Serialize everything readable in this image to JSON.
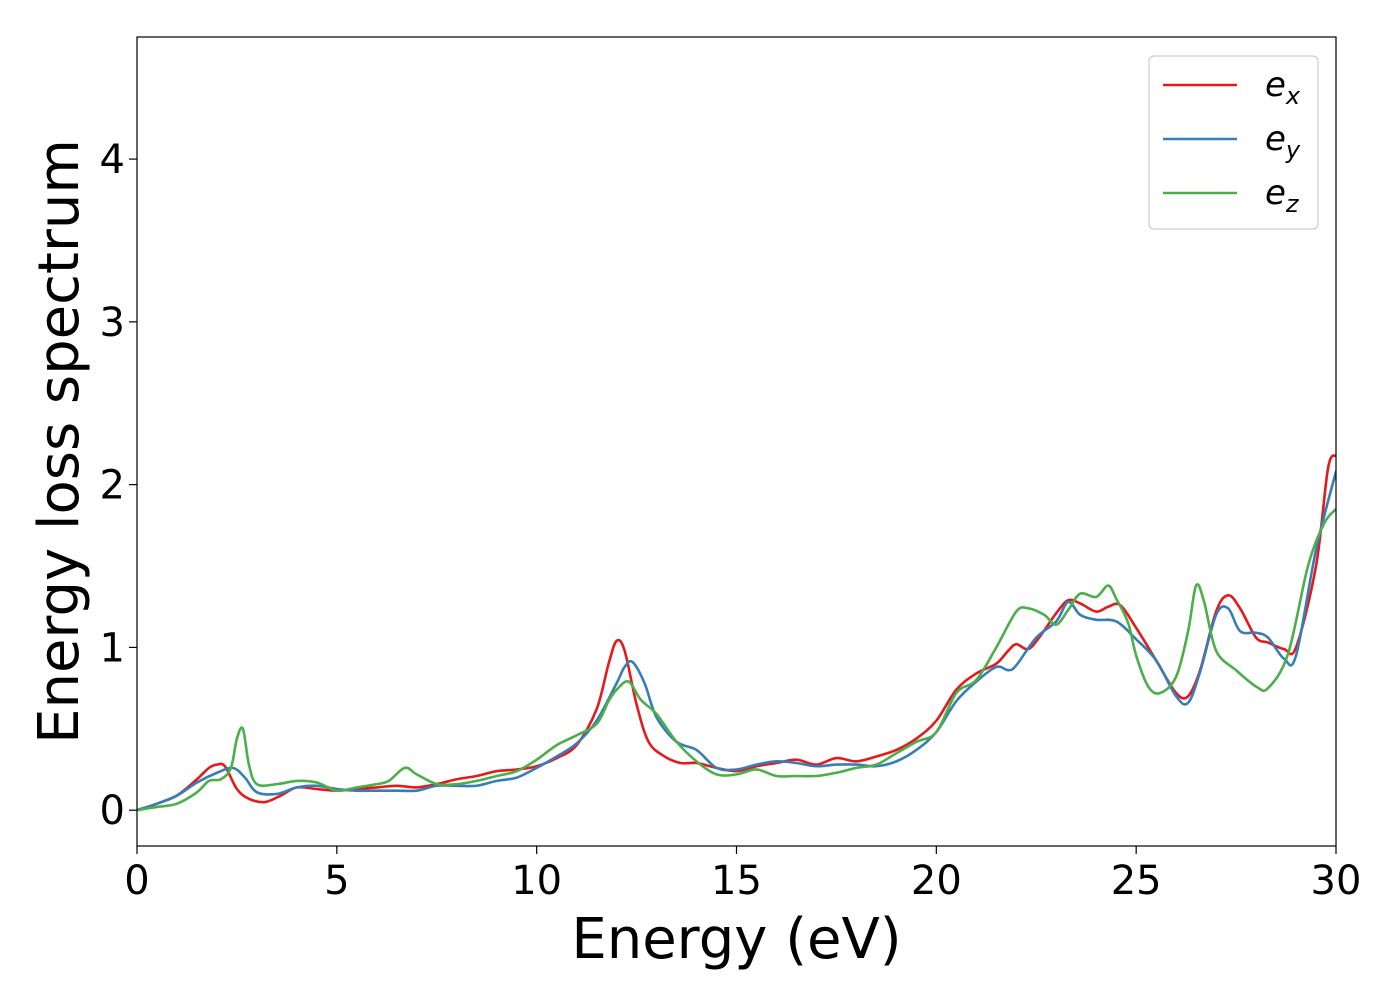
{
  "chart_data": {
    "type": "line",
    "title": "",
    "xlabel": "Energy (eV)",
    "ylabel": "Energy loss spectrum",
    "xlim": [
      0,
      30
    ],
    "ylim": [
      -0.22,
      4.75
    ],
    "xticks": [
      0,
      5,
      10,
      15,
      20,
      25,
      30
    ],
    "yticks": [
      0,
      1,
      2,
      3,
      4
    ],
    "grid": false,
    "legend_position": "top-right",
    "series": [
      {
        "name": "e_x",
        "label_base": "e",
        "label_sub": "x",
        "color": "#e41a1c",
        "x": [
          0,
          0.5,
          1.0,
          1.5,
          1.8,
          2.0,
          2.2,
          2.5,
          2.8,
          3.2,
          3.6,
          4.0,
          4.5,
          5.0,
          5.5,
          6.0,
          6.5,
          7.0,
          7.5,
          8.0,
          8.5,
          9.0,
          9.5,
          10.0,
          10.5,
          11.0,
          11.5,
          11.8,
          12.0,
          12.2,
          12.5,
          12.8,
          13.2,
          13.6,
          14.0,
          14.5,
          15.0,
          15.5,
          16.0,
          16.5,
          17.0,
          17.5,
          18.0,
          18.5,
          19.0,
          19.5,
          20.0,
          20.5,
          21.0,
          21.5,
          21.8,
          22.0,
          22.3,
          22.6,
          23.0,
          23.3,
          23.6,
          24.0,
          24.3,
          24.6,
          25.0,
          25.5,
          26.0,
          26.3,
          26.6,
          27.0,
          27.3,
          27.6,
          28.0,
          28.3,
          28.7,
          29.0,
          29.5,
          29.8,
          30.0
        ],
        "y": [
          0,
          0.04,
          0.09,
          0.19,
          0.26,
          0.28,
          0.27,
          0.13,
          0.07,
          0.05,
          0.09,
          0.14,
          0.13,
          0.12,
          0.13,
          0.14,
          0.15,
          0.14,
          0.16,
          0.19,
          0.21,
          0.24,
          0.25,
          0.27,
          0.32,
          0.4,
          0.62,
          0.9,
          1.04,
          0.98,
          0.65,
          0.42,
          0.33,
          0.29,
          0.29,
          0.26,
          0.24,
          0.27,
          0.29,
          0.31,
          0.28,
          0.32,
          0.3,
          0.33,
          0.37,
          0.44,
          0.55,
          0.74,
          0.84,
          0.9,
          0.98,
          1.02,
          0.99,
          1.07,
          1.21,
          1.29,
          1.27,
          1.22,
          1.25,
          1.26,
          1.12,
          0.92,
          0.72,
          0.7,
          0.86,
          1.22,
          1.32,
          1.24,
          1.06,
          1.03,
          0.99,
          1.0,
          1.5,
          2.1,
          2.18
        ]
      },
      {
        "name": "e_y",
        "label_base": "e",
        "label_sub": "y",
        "color": "#377eb8",
        "x": [
          0,
          0.5,
          1.0,
          1.5,
          2.0,
          2.4,
          2.7,
          3.0,
          3.5,
          4.0,
          4.5,
          5.0,
          5.5,
          6.0,
          6.5,
          7.0,
          7.5,
          8.0,
          8.5,
          9.0,
          9.5,
          10.0,
          10.5,
          11.0,
          11.5,
          12.0,
          12.2,
          12.4,
          12.7,
          13.0,
          13.5,
          14.0,
          14.5,
          15.0,
          15.5,
          16.0,
          16.5,
          17.0,
          17.5,
          18.0,
          18.5,
          19.0,
          19.5,
          20.0,
          20.5,
          21.0,
          21.5,
          21.8,
          22.0,
          22.5,
          23.0,
          23.3,
          23.6,
          24.0,
          24.5,
          25.0,
          25.5,
          26.0,
          26.3,
          26.6,
          27.0,
          27.3,
          27.6,
          28.0,
          28.3,
          28.7,
          29.0,
          29.5,
          30.0
        ],
        "y": [
          0,
          0.04,
          0.09,
          0.17,
          0.23,
          0.26,
          0.2,
          0.11,
          0.1,
          0.14,
          0.15,
          0.13,
          0.12,
          0.12,
          0.12,
          0.12,
          0.15,
          0.15,
          0.15,
          0.18,
          0.2,
          0.26,
          0.33,
          0.41,
          0.55,
          0.78,
          0.88,
          0.91,
          0.78,
          0.57,
          0.42,
          0.37,
          0.26,
          0.25,
          0.28,
          0.3,
          0.29,
          0.27,
          0.28,
          0.28,
          0.27,
          0.3,
          0.37,
          0.48,
          0.67,
          0.79,
          0.88,
          0.86,
          0.89,
          1.06,
          1.16,
          1.28,
          1.2,
          1.17,
          1.16,
          1.05,
          0.92,
          0.7,
          0.66,
          0.85,
          1.2,
          1.24,
          1.1,
          1.09,
          1.06,
          0.93,
          0.95,
          1.6,
          2.08
        ]
      },
      {
        "name": "e_z",
        "label_base": "e",
        "label_sub": "z",
        "color": "#4daf4a",
        "x": [
          0,
          0.5,
          1.0,
          1.5,
          1.8,
          2.1,
          2.35,
          2.5,
          2.65,
          2.8,
          3.0,
          3.5,
          4.0,
          4.5,
          5.0,
          5.5,
          6.0,
          6.3,
          6.7,
          7.0,
          7.5,
          8.0,
          8.5,
          9.0,
          9.5,
          10.0,
          10.5,
          11.0,
          11.5,
          11.8,
          12.0,
          12.3,
          12.6,
          13.0,
          13.5,
          14.0,
          14.5,
          15.0,
          15.5,
          16.0,
          16.5,
          17.0,
          17.5,
          18.0,
          18.5,
          19.0,
          19.5,
          20.0,
          20.5,
          21.0,
          21.5,
          22.0,
          22.3,
          22.7,
          23.0,
          23.3,
          23.6,
          24.0,
          24.3,
          24.5,
          24.8,
          25.0,
          25.3,
          25.6,
          26.0,
          26.3,
          26.5,
          26.7,
          27.0,
          27.5,
          28.0,
          28.3,
          28.8,
          29.3,
          29.7,
          30.0
        ],
        "y": [
          0,
          0.02,
          0.04,
          0.11,
          0.18,
          0.19,
          0.26,
          0.44,
          0.5,
          0.28,
          0.16,
          0.16,
          0.18,
          0.17,
          0.12,
          0.14,
          0.16,
          0.18,
          0.26,
          0.22,
          0.16,
          0.16,
          0.18,
          0.21,
          0.24,
          0.31,
          0.4,
          0.46,
          0.53,
          0.67,
          0.74,
          0.79,
          0.68,
          0.59,
          0.42,
          0.3,
          0.22,
          0.22,
          0.25,
          0.21,
          0.21,
          0.21,
          0.23,
          0.26,
          0.28,
          0.35,
          0.42,
          0.48,
          0.72,
          0.8,
          1.0,
          1.22,
          1.24,
          1.2,
          1.14,
          1.23,
          1.33,
          1.31,
          1.38,
          1.3,
          1.15,
          0.95,
          0.76,
          0.72,
          0.82,
          1.1,
          1.38,
          1.28,
          0.98,
          0.86,
          0.76,
          0.75,
          0.96,
          1.5,
          1.76,
          1.85
        ]
      }
    ]
  }
}
